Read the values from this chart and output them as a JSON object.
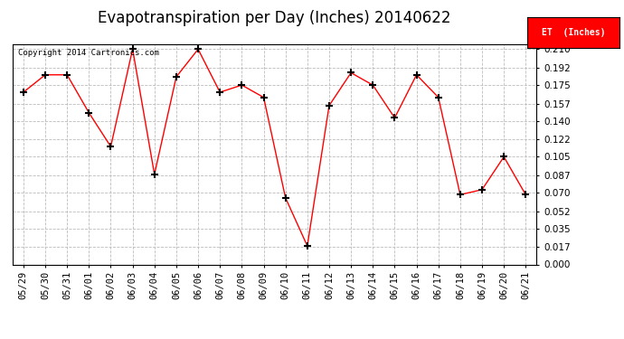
{
  "title": "Evapotranspiration per Day (Inches) 20140622",
  "copyright_text": "Copyright 2014 Cartronics.com",
  "legend_label": "ET  (Inches)",
  "legend_bg": "#ff0000",
  "legend_text_color": "#ffffff",
  "x_labels": [
    "05/29",
    "05/30",
    "05/31",
    "06/01",
    "06/02",
    "06/03",
    "06/04",
    "06/05",
    "06/06",
    "06/07",
    "06/08",
    "06/09",
    "06/10",
    "06/11",
    "06/12",
    "06/13",
    "06/14",
    "06/15",
    "06/16",
    "06/17",
    "06/18",
    "06/19",
    "06/20",
    "06/21"
  ],
  "y_values": [
    0.168,
    0.185,
    0.185,
    0.148,
    0.115,
    0.21,
    0.088,
    0.183,
    0.21,
    0.168,
    0.175,
    0.163,
    0.065,
    0.018,
    0.155,
    0.187,
    0.175,
    0.143,
    0.185,
    0.163,
    0.068,
    0.073,
    0.105,
    0.068
  ],
  "ylim": [
    0.0,
    0.215
  ],
  "yticks": [
    0.0,
    0.017,
    0.035,
    0.052,
    0.07,
    0.087,
    0.105,
    0.122,
    0.14,
    0.157,
    0.175,
    0.192,
    0.21
  ],
  "line_color": "#ff0000",
  "marker": "+",
  "marker_color": "#000000",
  "bg_color": "#ffffff",
  "grid_color": "#bbbbbb",
  "title_fontsize": 12,
  "tick_fontsize": 7.5,
  "copyright_fontsize": 6.5
}
